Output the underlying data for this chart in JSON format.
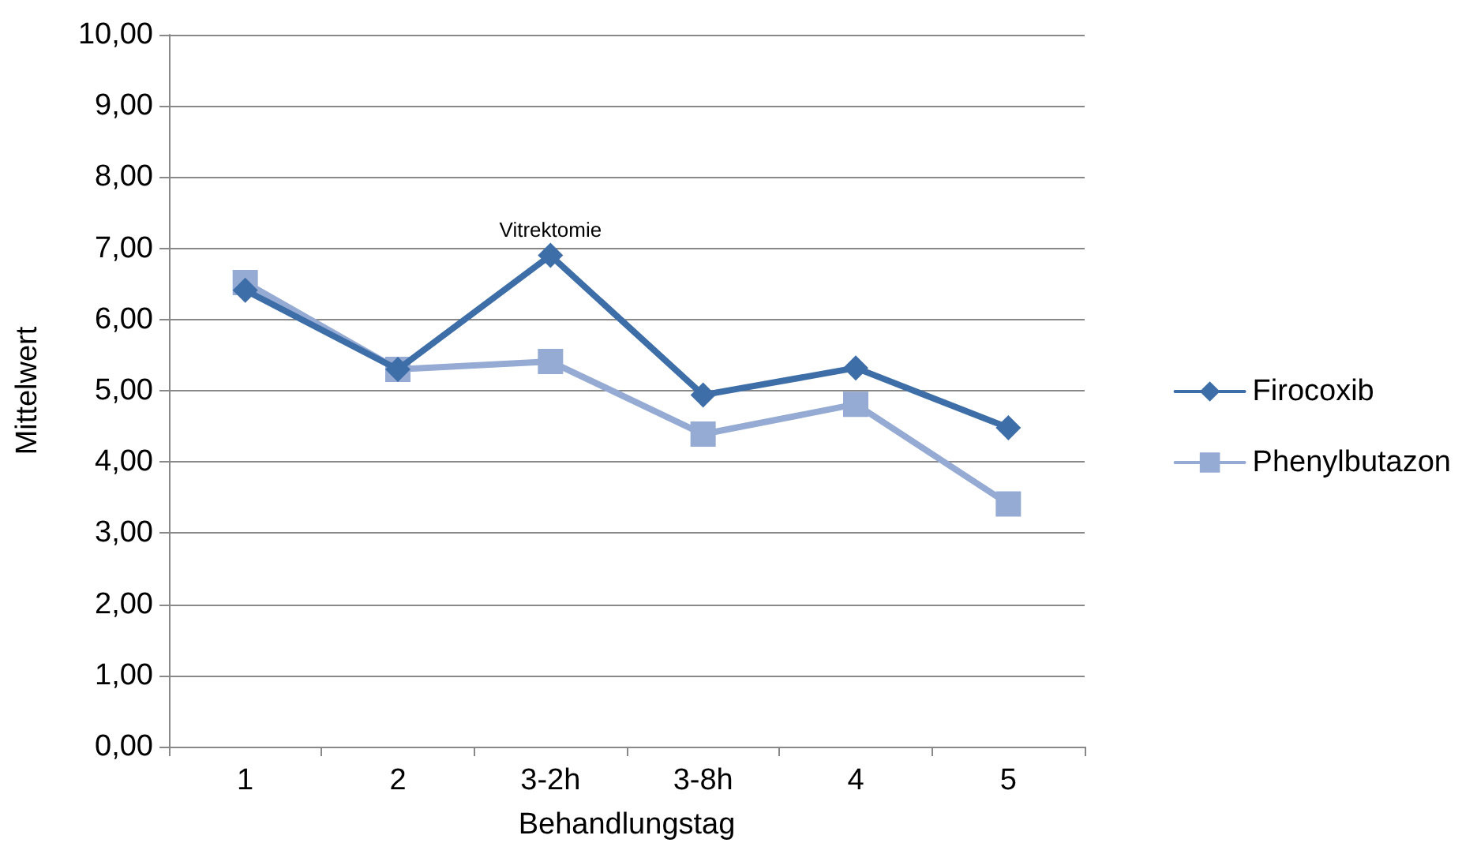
{
  "chart_data": {
    "type": "line",
    "xlabel": "Behandlungstag",
    "ylabel": "Mittelwert",
    "categories": [
      "1",
      "2",
      "3-2h",
      "3-8h",
      "4",
      "5"
    ],
    "series": [
      {
        "name": "Firocoxib",
        "color": "#3e6ea8",
        "marker": "diamond",
        "values": [
          6.41,
          5.3,
          6.9,
          4.94,
          5.32,
          4.48
        ]
      },
      {
        "name": "Phenylbutazon",
        "color": "#95abd4",
        "marker": "square",
        "values": [
          6.52,
          5.3,
          5.41,
          4.39,
          4.81,
          3.41
        ]
      }
    ],
    "ylim": [
      0,
      10
    ],
    "yticks": [
      {
        "value": 0,
        "label": "0,00"
      },
      {
        "value": 1,
        "label": "1,00"
      },
      {
        "value": 2,
        "label": "2,00"
      },
      {
        "value": 3,
        "label": "3,00"
      },
      {
        "value": 4,
        "label": "4,00"
      },
      {
        "value": 5,
        "label": "5,00"
      },
      {
        "value": 6,
        "label": "6,00"
      },
      {
        "value": 7,
        "label": "7,00"
      },
      {
        "value": 8,
        "label": "8,00"
      },
      {
        "value": 9,
        "label": "9,00"
      },
      {
        "value": 10,
        "label": "10,00"
      }
    ],
    "annotations": [
      {
        "text": "Vitrektomie",
        "x": "3-2h",
        "y": 6.9
      }
    ],
    "grid": "y",
    "legend": "right",
    "line_style": "solid"
  }
}
